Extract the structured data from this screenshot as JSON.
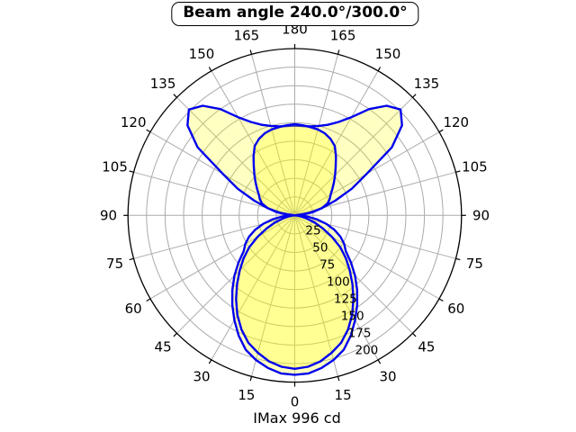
{
  "chart_data": {
    "type": "polar",
    "title": "Beam angle 240.0°/300.0°",
    "footer": "IMax 996 cd",
    "imax_cd": 996,
    "beam_angles_deg": [
      240.0,
      300.0
    ],
    "angle_ticks_deg": [
      0,
      15,
      30,
      45,
      60,
      75,
      90,
      105,
      120,
      135,
      150,
      165,
      180
    ],
    "angle_tick_labels": [
      "0",
      "15",
      "30",
      "45",
      "60",
      "75",
      "90",
      "105",
      "120",
      "135",
      "150",
      "165",
      "180"
    ],
    "mirrored_labels": true,
    "angle_step_deg": 15,
    "r_ticks": [
      25,
      50,
      75,
      100,
      125,
      150,
      175,
      200
    ],
    "r_tick_labels": [
      "25",
      "50",
      "75",
      "100",
      "125",
      "150",
      "175",
      "200"
    ],
    "r_range": [
      0,
      225
    ],
    "r_label_angle_deg": 22.5,
    "grid_on": true,
    "colors": {
      "curve": "#0000ee",
      "fill": "rgba(255,255,0,0.24)",
      "grid": "#ababab",
      "axis": "#000000",
      "background": "#ffffff",
      "text": "#000000"
    },
    "series": [
      {
        "name": "beam-curve-wide-plane",
        "points_deg_r": [
          [
            0,
            215
          ],
          [
            5,
            214
          ],
          [
            10,
            209
          ],
          [
            15,
            202
          ],
          [
            20,
            193
          ],
          [
            25,
            179
          ],
          [
            30,
            163
          ],
          [
            35,
            147
          ],
          [
            40,
            131
          ],
          [
            45,
            115
          ],
          [
            50,
            99
          ],
          [
            55,
            84
          ],
          [
            60,
            77
          ],
          [
            65,
            68
          ],
          [
            70,
            57
          ],
          [
            75,
            44
          ],
          [
            80,
            30
          ],
          [
            85,
            16
          ],
          [
            90,
            5
          ],
          [
            95,
            1
          ],
          [
            100,
            20
          ],
          [
            105,
            38
          ],
          [
            110,
            58
          ],
          [
            115,
            85
          ],
          [
            120,
            112
          ],
          [
            125,
            160
          ],
          [
            130,
            189
          ],
          [
            135,
            202
          ],
          [
            140,
            193
          ],
          [
            145,
            175
          ],
          [
            150,
            153
          ],
          [
            155,
            139
          ],
          [
            160,
            130
          ],
          [
            165,
            125
          ],
          [
            170,
            122
          ],
          [
            175,
            121
          ],
          [
            180,
            121
          ]
        ]
      },
      {
        "name": "beam-curve-narrow-plane",
        "points_deg_r": [
          [
            0,
            207
          ],
          [
            5,
            205
          ],
          [
            10,
            200
          ],
          [
            15,
            192
          ],
          [
            20,
            183
          ],
          [
            25,
            170
          ],
          [
            30,
            155
          ],
          [
            35,
            138
          ],
          [
            40,
            121
          ],
          [
            45,
            105
          ],
          [
            50,
            90
          ],
          [
            55,
            75
          ],
          [
            60,
            58
          ],
          [
            65,
            42
          ],
          [
            70,
            29
          ],
          [
            75,
            17
          ],
          [
            80,
            8
          ],
          [
            85,
            3
          ],
          [
            90,
            0
          ],
          [
            95,
            10
          ],
          [
            100,
            25
          ],
          [
            105,
            38
          ],
          [
            110,
            47
          ],
          [
            115,
            52
          ],
          [
            120,
            56
          ],
          [
            125,
            62
          ],
          [
            130,
            69
          ],
          [
            135,
            77
          ],
          [
            140,
            86
          ],
          [
            145,
            97
          ],
          [
            150,
            108
          ],
          [
            155,
            114
          ],
          [
            160,
            118
          ],
          [
            165,
            120
          ],
          [
            170,
            121
          ],
          [
            175,
            122
          ],
          [
            180,
            123
          ]
        ]
      }
    ]
  }
}
